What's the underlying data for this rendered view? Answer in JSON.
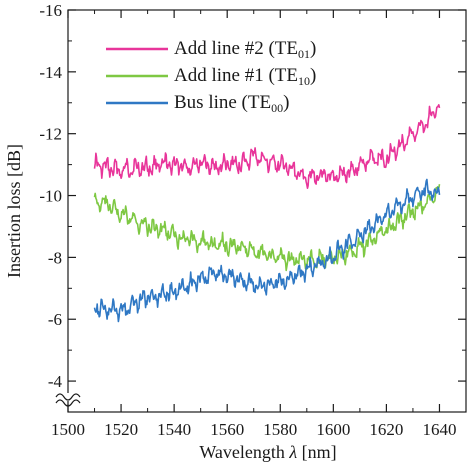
{
  "chart_data": {
    "type": "line",
    "xlabel": "Wavelength",
    "xlabel_symbol": "λ",
    "xlabel_unit": "[nm]",
    "ylabel": "Insertion loss [dB]",
    "xlim": [
      1500,
      1650
    ],
    "ylim": [
      -3,
      -16
    ],
    "x_ticks": [
      1500,
      1520,
      1540,
      1560,
      1580,
      1600,
      1620,
      1640
    ],
    "y_ticks": [
      -4,
      -6,
      -8,
      -10,
      -12,
      -14,
      -16
    ],
    "y_axis_break": true,
    "y_axis_inverted": true,
    "grid": false,
    "legend_position": "top-left",
    "series": [
      {
        "name": "Add line #2 (TE01)",
        "legend_main": "Add line #2 (TE",
        "legend_sub": "01",
        "legend_close": ")",
        "color": "#e8359a",
        "x": [
          1510,
          1515,
          1520,
          1525,
          1530,
          1535,
          1540,
          1545,
          1550,
          1555,
          1560,
          1565,
          1570,
          1575,
          1580,
          1585,
          1590,
          1595,
          1600,
          1605,
          1610,
          1615,
          1620,
          1625,
          1630,
          1635,
          1640
        ],
        "y": [
          -11.0,
          -10.9,
          -10.8,
          -10.9,
          -10.9,
          -11.0,
          -11.0,
          -10.9,
          -11.1,
          -10.9,
          -11.0,
          -11.0,
          -11.3,
          -11.1,
          -11.0,
          -10.8,
          -10.6,
          -10.6,
          -10.6,
          -10.7,
          -11.0,
          -11.2,
          -11.2,
          -11.6,
          -12.0,
          -12.4,
          -12.8
        ]
      },
      {
        "name": "Add line #1 (TE10)",
        "legend_main": "Add line #1 (TE",
        "legend_sub": "10",
        "legend_close": ")",
        "color": "#7ec843",
        "x": [
          1510,
          1515,
          1520,
          1525,
          1530,
          1535,
          1540,
          1545,
          1550,
          1555,
          1560,
          1565,
          1570,
          1575,
          1580,
          1585,
          1590,
          1595,
          1600,
          1605,
          1610,
          1615,
          1620,
          1625,
          1630,
          1635,
          1640
        ],
        "y": [
          -9.8,
          -9.7,
          -9.4,
          -9.2,
          -9.0,
          -8.9,
          -8.7,
          -8.6,
          -8.5,
          -8.4,
          -8.4,
          -8.3,
          -8.2,
          -8.1,
          -8.0,
          -7.9,
          -7.9,
          -7.9,
          -8.0,
          -8.1,
          -8.3,
          -8.6,
          -8.9,
          -9.2,
          -9.5,
          -9.8,
          -10.2
        ]
      },
      {
        "name": "Bus line (TE00)",
        "legend_main": "Bus line (TE",
        "legend_sub": "00",
        "legend_close": ")",
        "color": "#2f78c4",
        "x": [
          1510,
          1515,
          1520,
          1525,
          1530,
          1535,
          1540,
          1545,
          1550,
          1555,
          1560,
          1565,
          1570,
          1575,
          1580,
          1585,
          1590,
          1595,
          1600,
          1605,
          1610,
          1615,
          1620,
          1625,
          1630,
          1635,
          1640
        ],
        "y": [
          -6.4,
          -6.3,
          -6.3,
          -6.5,
          -6.7,
          -6.8,
          -6.9,
          -7.1,
          -7.3,
          -7.5,
          -7.4,
          -7.3,
          -7.1,
          -7.1,
          -7.2,
          -7.4,
          -7.6,
          -7.8,
          -8.1,
          -8.4,
          -8.7,
          -9.0,
          -9.4,
          -9.7,
          -10.0,
          -10.2,
          -10.1
        ]
      }
    ]
  }
}
